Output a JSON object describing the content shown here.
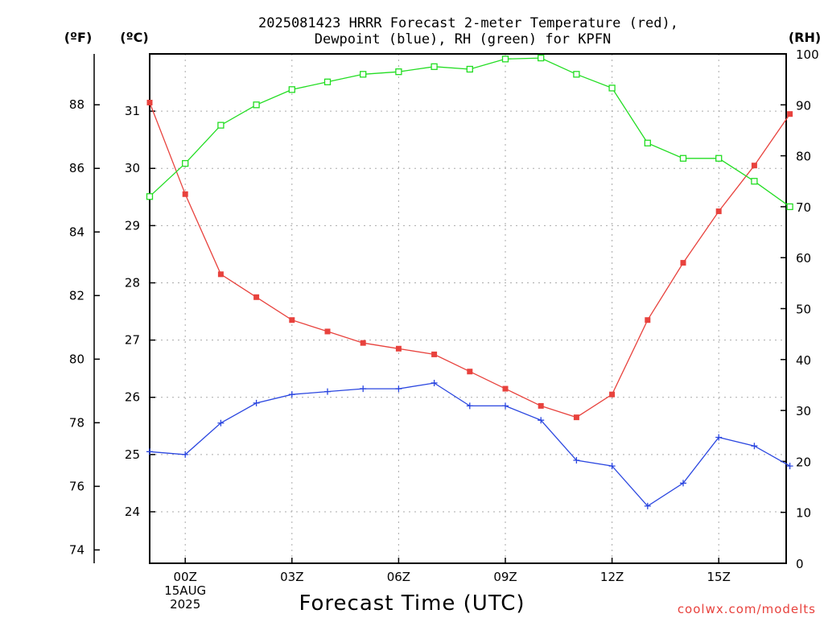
{
  "chart_data": {
    "type": "line",
    "title_lines": [
      "2025081423 HRRR Forecast 2-meter Temperature (red),",
      "Dewpoint (blue), RH (green) for KPFN"
    ],
    "xlabel": "Forecast Time (UTC)",
    "credit": "coolwx.com/modelts",
    "unit_labels": {
      "fahrenheit": "(ºF)",
      "celsius": "(ºC)",
      "rh": "(RH)"
    },
    "x": [
      "14AUG 23Z",
      "00Z",
      "01Z",
      "02Z",
      "03Z",
      "04Z",
      "05Z",
      "06Z",
      "07Z",
      "08Z",
      "09Z",
      "10Z",
      "11Z",
      "12Z",
      "13Z",
      "14Z",
      "15Z",
      "16Z",
      "17Z"
    ],
    "x_tick_labels": [
      {
        "index": 1,
        "lines": [
          "00Z",
          "15AUG",
          "2025"
        ]
      },
      {
        "index": 4,
        "lines": [
          "03Z"
        ]
      },
      {
        "index": 7,
        "lines": [
          "06Z"
        ]
      },
      {
        "index": 10,
        "lines": [
          "09Z"
        ]
      },
      {
        "index": 13,
        "lines": [
          "12Z"
        ]
      },
      {
        "index": 16,
        "lines": [
          "15Z"
        ]
      }
    ],
    "left_axis_f": {
      "ticks": [
        74,
        76,
        78,
        80,
        82,
        84,
        86,
        88
      ]
    },
    "left_axis_c": {
      "ylim": [
        23.1,
        32.0
      ],
      "ticks": [
        24,
        25,
        26,
        27,
        28,
        29,
        30,
        31
      ]
    },
    "right_axis_rh": {
      "ylim": [
        0,
        100
      ],
      "ticks": [
        0,
        10,
        20,
        30,
        40,
        50,
        60,
        70,
        80,
        90,
        100
      ]
    },
    "series": [
      {
        "name": "Temperature",
        "axis": "celsius",
        "color": "#e8423d",
        "marker": "filled-square",
        "values": [
          31.15,
          29.55,
          28.15,
          27.75,
          27.35,
          27.15,
          26.95,
          26.85,
          26.75,
          26.45,
          26.15,
          25.85,
          25.65,
          26.05,
          27.35,
          28.35,
          29.25,
          30.05,
          30.95
        ]
      },
      {
        "name": "Dewpoint",
        "axis": "celsius",
        "color": "#2a46e0",
        "marker": "plus",
        "values": [
          25.05,
          25.0,
          25.55,
          25.9,
          26.05,
          26.1,
          26.15,
          26.15,
          26.25,
          25.85,
          25.85,
          25.6,
          24.9,
          24.8,
          24.1,
          24.5,
          25.3,
          25.15,
          24.8
        ]
      },
      {
        "name": "RH",
        "axis": "rh",
        "color": "#22dd22",
        "marker": "open-square",
        "values": [
          72,
          78.5,
          86,
          90,
          93,
          94.5,
          96,
          96.5,
          97.5,
          97,
          99,
          99.2,
          96,
          93.3,
          82.5,
          79.5,
          79.5,
          75,
          70
        ]
      }
    ]
  }
}
